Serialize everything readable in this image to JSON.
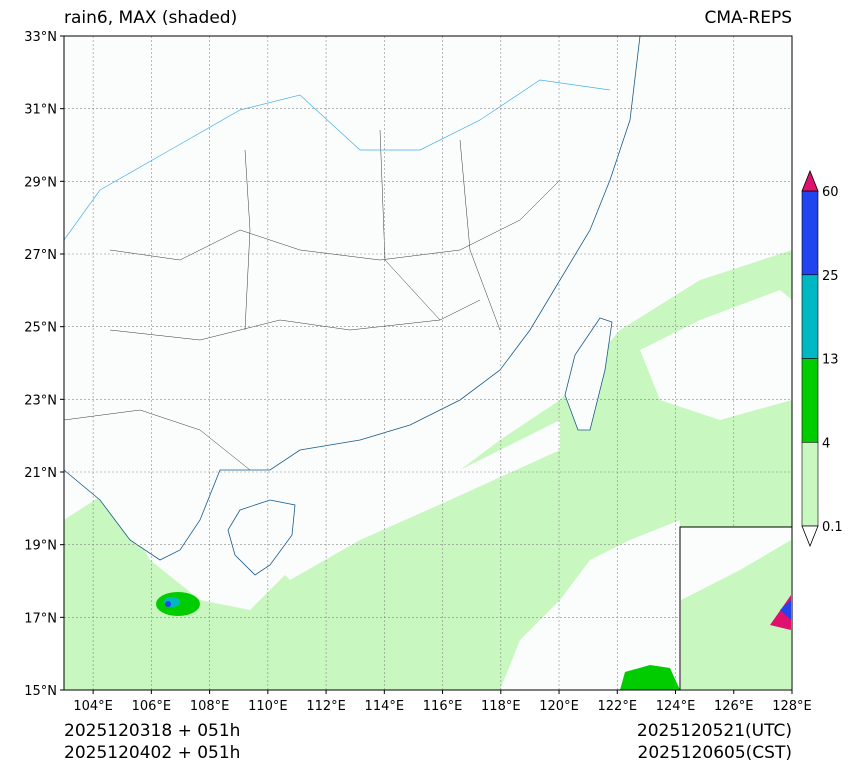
{
  "header": {
    "title": "rain6, MAX (shaded)",
    "source": "CMA-REPS"
  },
  "footer": {
    "init_utc": "2025120318  +  051h",
    "init_cst": "2025120402  +  051h",
    "valid_utc": "2025120521(UTC)",
    "valid_cst": "2025120605(CST)"
  },
  "axes": {
    "lat_labels": [
      "15°N",
      "17°N",
      "19°N",
      "21°N",
      "23°N",
      "25°N",
      "27°N",
      "29°N",
      "31°N",
      "33°N"
    ],
    "lon_labels": [
      "104°E",
      "106°E",
      "108°E",
      "110°E",
      "112°E",
      "114°E",
      "116°E",
      "118°E",
      "120°E",
      "122°E",
      "124°E",
      "126°E",
      "128°E"
    ],
    "lat_range": [
      15,
      33
    ],
    "lon_range": [
      103,
      128
    ]
  },
  "colorbar": {
    "levels": [
      "0.1",
      "4",
      "13",
      "25",
      "60"
    ],
    "colors": [
      "#c8f8c0",
      "#00cc00",
      "#00b8c4",
      "#2244ee"
    ],
    "over_color": "#e0106e",
    "under_color": "#ffffff"
  }
}
